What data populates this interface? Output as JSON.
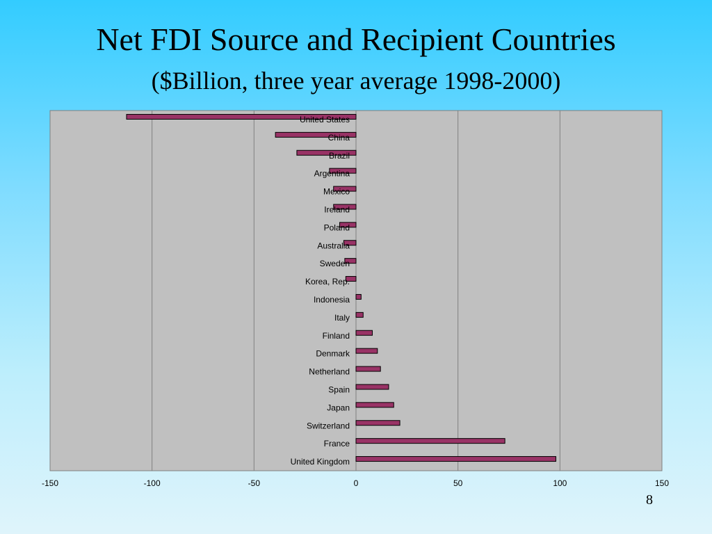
{
  "slide": {
    "title": "Net FDI Source and Recipient Countries",
    "subtitle": "($Billion, three year average 1998-2000)",
    "page_number": "8"
  },
  "colors": {
    "plot_background": "#c0c0c0",
    "bar_fill": "#993366",
    "bar_stroke": "#000000",
    "gridline": "#808080"
  },
  "chart_data": {
    "type": "bar",
    "orientation": "horizontal",
    "title": "",
    "xlabel": "",
    "ylabel": "",
    "xlim": [
      -150,
      150
    ],
    "xticks": [
      -150,
      -100,
      -50,
      0,
      50,
      100,
      150
    ],
    "grid": true,
    "legend": "none",
    "categories": [
      "United States",
      "China",
      "Brazil",
      "Argentina",
      "Mexico",
      "Ireland",
      "Poland",
      "Australia",
      "Sweden",
      "Korea, Rep.",
      "Indonesia",
      "Italy",
      "Finland",
      "Denmark",
      "Netherland",
      "Spain",
      "Japan",
      "Switzerland",
      "France",
      "United Kingdom"
    ],
    "values": [
      -112.5,
      -39.5,
      -29,
      -13,
      -11,
      -11,
      -8,
      -6,
      -5.5,
      -5,
      2.5,
      3.5,
      8,
      10.5,
      12,
      16,
      18.5,
      21.5,
      73,
      98
    ]
  }
}
